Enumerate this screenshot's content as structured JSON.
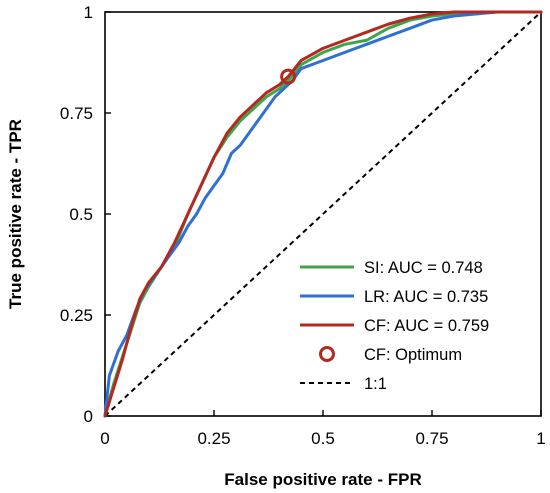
{
  "chart_data": {
    "type": "line",
    "xlabel": "False positive rate - FPR",
    "ylabel": "True positive rate - TPR",
    "xlim": [
      0,
      1
    ],
    "ylim": [
      0,
      1
    ],
    "x_ticks": [
      "0",
      "0.25",
      "0.5",
      "0.75",
      "1"
    ],
    "y_ticks": [
      "0",
      "0.25",
      "0.5",
      "0.75",
      "1"
    ],
    "grid": false,
    "legend_position": "bottom-right",
    "series": [
      {
        "name": "SI: AUC = 0.748",
        "color": "#3ea54a",
        "x": [
          0,
          0.02,
          0.05,
          0.08,
          0.1,
          0.13,
          0.16,
          0.19,
          0.22,
          0.25,
          0.28,
          0.31,
          0.34,
          0.37,
          0.4,
          0.42,
          0.45,
          0.5,
          0.55,
          0.6,
          0.65,
          0.7,
          0.75,
          0.8,
          0.9,
          1
        ],
        "y": [
          0,
          0.08,
          0.18,
          0.28,
          0.32,
          0.37,
          0.42,
          0.5,
          0.57,
          0.64,
          0.69,
          0.73,
          0.76,
          0.79,
          0.81,
          0.83,
          0.87,
          0.9,
          0.92,
          0.93,
          0.96,
          0.98,
          0.99,
          0.995,
          1,
          1
        ]
      },
      {
        "name": "LR: AUC = 0.735",
        "color": "#2f6fd6",
        "x": [
          0,
          0.01,
          0.03,
          0.05,
          0.07,
          0.09,
          0.11,
          0.13,
          0.15,
          0.17,
          0.19,
          0.21,
          0.23,
          0.25,
          0.27,
          0.29,
          0.31,
          0.33,
          0.35,
          0.37,
          0.39,
          0.41,
          0.43,
          0.45,
          0.5,
          0.55,
          0.6,
          0.65,
          0.7,
          0.75,
          0.8,
          0.9,
          1
        ],
        "y": [
          0,
          0.1,
          0.16,
          0.2,
          0.26,
          0.31,
          0.34,
          0.37,
          0.4,
          0.43,
          0.47,
          0.5,
          0.54,
          0.57,
          0.6,
          0.65,
          0.67,
          0.7,
          0.73,
          0.76,
          0.79,
          0.81,
          0.83,
          0.86,
          0.88,
          0.9,
          0.92,
          0.94,
          0.96,
          0.98,
          0.99,
          1,
          1
        ]
      },
      {
        "name": "CF: AUC = 0.759",
        "color": "#b5281f",
        "x": [
          0,
          0.02,
          0.04,
          0.06,
          0.08,
          0.1,
          0.13,
          0.16,
          0.19,
          0.22,
          0.25,
          0.28,
          0.31,
          0.34,
          0.37,
          0.4,
          0.42,
          0.45,
          0.5,
          0.55,
          0.6,
          0.65,
          0.7,
          0.75,
          0.8,
          0.9,
          1
        ],
        "y": [
          0,
          0.07,
          0.14,
          0.22,
          0.29,
          0.33,
          0.37,
          0.43,
          0.5,
          0.57,
          0.64,
          0.7,
          0.74,
          0.77,
          0.8,
          0.82,
          0.84,
          0.88,
          0.91,
          0.93,
          0.95,
          0.97,
          0.985,
          0.995,
          1,
          1,
          1
        ]
      }
    ],
    "optimum": {
      "name": "CF: Optimum",
      "x": 0.42,
      "y": 0.84,
      "color": "#b5281f"
    },
    "reference": {
      "name": "1:1",
      "x": [
        0,
        1
      ],
      "y": [
        0,
        1
      ],
      "color": "#000000"
    }
  }
}
